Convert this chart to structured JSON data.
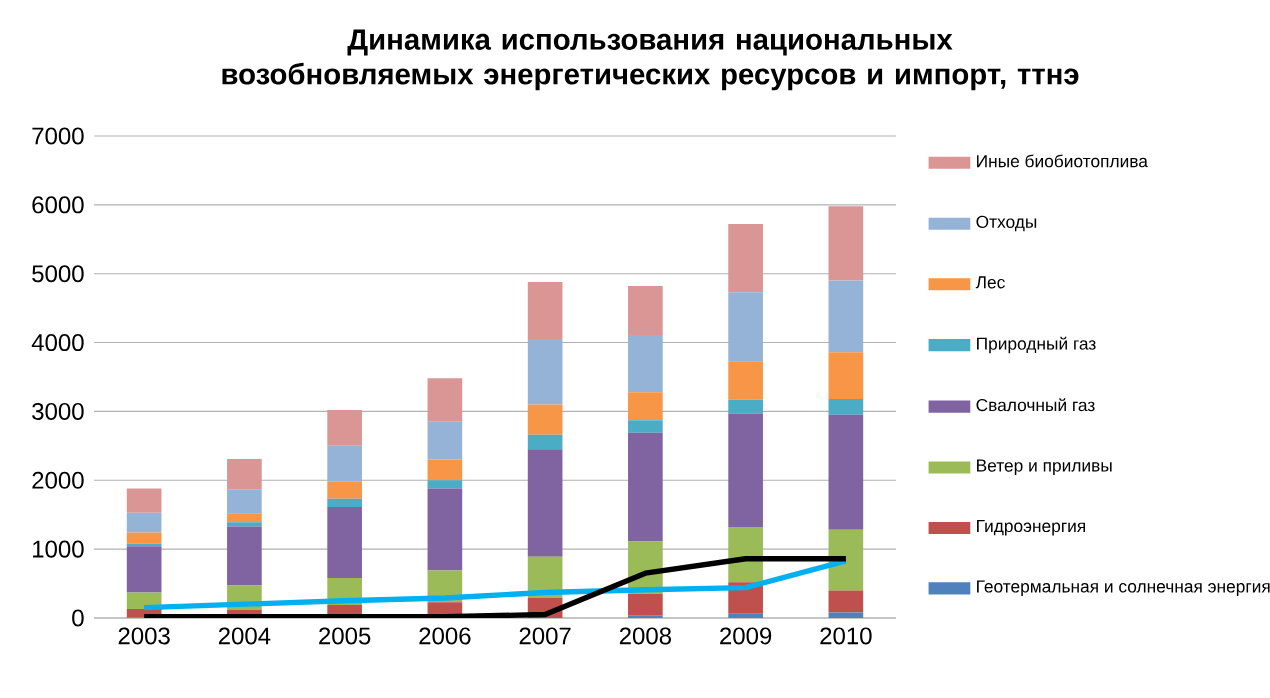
{
  "chart_data": {
    "type": "bar",
    "stacked": true,
    "title": "Динамика использования национальных возобновляемых энергетических ресурсов и импорт, ттнэ",
    "categories": [
      "2003",
      "2004",
      "2005",
      "2006",
      "2007",
      "2008",
      "2009",
      "2010"
    ],
    "series": [
      {
        "name": "Геотермальная и солнечная энергия",
        "color": "#4f81bd",
        "values": [
          10,
          null,
          null,
          null,
          null,
          40,
          60,
          80
        ]
      },
      {
        "name": "Гидроэнергия",
        "color": "#c0504d",
        "values": [
          120,
          120,
          190,
          230,
          290,
          310,
          460,
          320
        ]
      },
      {
        "name": "Ветер и приливы",
        "color": "#9bbb59",
        "values": [
          240,
          350,
          390,
          460,
          600,
          760,
          800,
          880
        ]
      },
      {
        "name": "Свалочный газ",
        "color": "#8064a2",
        "values": [
          670,
          860,
          1030,
          1190,
          1560,
          1580,
          1650,
          1670
        ]
      },
      {
        "name": "Природный газ",
        "color": "#4bacc6",
        "values": [
          40,
          60,
          120,
          120,
          210,
          180,
          200,
          230
        ]
      },
      {
        "name": "Лес",
        "color": "#f79646",
        "values": [
          160,
          130,
          250,
          300,
          440,
          410,
          560,
          680
        ]
      },
      {
        "name": "Отходы",
        "color": "#95b3d7",
        "values": [
          290,
          350,
          520,
          550,
          950,
          830,
          1000,
          1040
        ]
      },
      {
        "name": "Иные биобиотоплива",
        "color": "#d99694",
        "values": [
          350,
          440,
          520,
          630,
          830,
          710,
          990,
          1080
        ]
      },
      {
        "type": "line",
        "color": "#00b0f0",
        "values": [
          150,
          200,
          250,
          290,
          370,
          410,
          440,
          830
        ]
      },
      {
        "type": "line",
        "color": "#000000",
        "values": [
          20,
          20,
          20,
          20,
          50,
          650,
          860,
          860
        ]
      }
    ],
    "ylim": [
      0,
      7000
    ],
    "yticks": [
      0,
      1000,
      2000,
      3000,
      4000,
      5000,
      6000,
      7000
    ],
    "grid": "y",
    "legend": "right"
  }
}
